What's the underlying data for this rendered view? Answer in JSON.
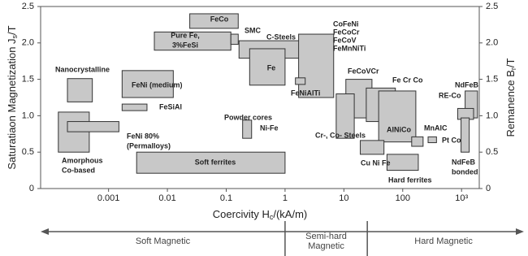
{
  "chart_data": {
    "type": "range-box",
    "x_label_parts": [
      "Coercivity H",
      "c",
      "/(kA/m)"
    ],
    "y_label_parts": [
      "Saturatiaon Magnetization J",
      "s",
      "/T"
    ],
    "y2_label_parts": [
      "Remanence B",
      "r",
      "/T"
    ],
    "xscale": "log",
    "xlim": [
      7e-05,
      2000
    ],
    "xticks": [
      {
        "value": 0.001,
        "label": "0.001"
      },
      {
        "value": 0.01,
        "label": "0.01"
      },
      0.1,
      1,
      10,
      100,
      {
        "value": 1000,
        "label": "10³"
      }
    ],
    "ylim": [
      0,
      2.5
    ],
    "yticks": [
      0,
      0.5,
      {
        "value": 1,
        "label": "1.0"
      },
      1.5,
      {
        "value": 2,
        "label": "2.0"
      },
      2.5
    ],
    "y2lim": [
      0,
      2.5
    ],
    "y2ticks": [
      0,
      0.5,
      {
        "value": 1,
        "label": "1.0"
      },
      1.5,
      {
        "value": 2,
        "label": "2.0"
      },
      2.5
    ],
    "box_color": "#c8c8c8",
    "materials": [
      {
        "label": [
          "FeCo"
        ],
        "x": [
          0.024,
          0.16
        ],
        "y": [
          2.2,
          2.4
        ]
      },
      {
        "label": [
          "Pure Fe,",
          "3%FeSi"
        ],
        "x": [
          0.006,
          0.12
        ],
        "y": [
          1.9,
          2.15
        ]
      },
      {
        "label": [
          "SMC"
        ],
        "x": [
          0.12,
          0.16
        ],
        "y": [
          1.98,
          2.12
        ]
      },
      {
        "label": [
          "C-Steels"
        ],
        "x": [
          0.165,
          4.1
        ],
        "y": [
          1.79,
          2.03
        ]
      },
      {
        "label": [
          "Fe"
        ],
        "x": [
          0.25,
          1
        ],
        "y": [
          1.42,
          1.92
        ]
      },
      {
        "label": [
          "CoFeNi",
          "FeCoCr",
          "FeCoV",
          "FeMnNiTi"
        ],
        "x": [
          1.7,
          6.7
        ],
        "y": [
          1.25,
          2.12
        ]
      },
      {
        "label": [
          "FeNiAlTi"
        ],
        "x": [
          1.5,
          2.2
        ],
        "y": [
          1.43,
          1.52
        ]
      },
      {
        "label": [
          "Nanocrystalline"
        ],
        "x": [
          0.0002,
          0.00053
        ],
        "y": [
          1.19,
          1.51
        ]
      },
      {
        "label": [
          "FeNi (medium)"
        ],
        "x": [
          0.0017,
          0.0126
        ],
        "y": [
          1.25,
          1.62
        ]
      },
      {
        "label": [
          "FeSiAl"
        ],
        "x": [
          0.0017,
          0.0045
        ],
        "y": [
          1.07,
          1.16
        ]
      },
      {
        "label": [
          "Amorphous",
          "Co-based"
        ],
        "x": [
          0.00014,
          0.00047
        ],
        "y": [
          0.5,
          1.05
        ]
      },
      {
        "label": [
          "FeNi 80%",
          "(Permalloys)"
        ],
        "x": [
          0.0002,
          0.0015
        ],
        "y": [
          0.78,
          0.92
        ]
      },
      {
        "label": [
          "Soft ferrites"
        ],
        "x": [
          0.003,
          1
        ],
        "y": [
          0.21,
          0.5
        ]
      },
      {
        "label": [
          "Powder cores",
          "Ni-Fe"
        ],
        "x": [
          0.19,
          0.27
        ],
        "y": [
          0.69,
          0.94
        ]
      },
      {
        "label": [
          "FeCoVCr"
        ],
        "x": [
          10.8,
          30
        ],
        "y": [
          0.97,
          1.5
        ]
      },
      {
        "label": [
          "Cr-, Co- Steels"
        ],
        "x": [
          7.4,
          15
        ],
        "y": [
          0.69,
          1.3
        ]
      },
      {
        "label": [
          "Fe Cr Co"
        ],
        "x": [
          24,
          75
        ],
        "y": [
          0.92,
          1.38
        ]
      },
      {
        "label": [
          "AlNiCo"
        ],
        "x": [
          39,
          167
        ],
        "y": [
          0.64,
          1.34
        ]
      },
      {
        "label": [
          "Cu Ni Fe"
        ],
        "x": [
          19,
          48
        ],
        "y": [
          0.47,
          0.66
        ]
      },
      {
        "label": [
          "Hard ferrites"
        ],
        "x": [
          54,
          184
        ],
        "y": [
          0.25,
          0.47
        ]
      },
      {
        "label": [
          "MnAlC"
        ],
        "x": [
          142,
          222
        ],
        "y": [
          0.58,
          0.71
        ]
      },
      {
        "label": [
          "Pt Co"
        ],
        "x": [
          270,
          375
        ],
        "y": [
          0.63,
          0.71
        ]
      },
      {
        "label": [
          "NdFeB"
        ],
        "x": [
          1150,
          1870
        ],
        "y": [
          0.97,
          1.34
        ]
      },
      {
        "label": [
          "RE-Co"
        ],
        "x": [
          860,
          1600
        ],
        "y": [
          0.95,
          1.1
        ]
      },
      {
        "label": [
          "NdFeB",
          "bonded"
        ],
        "x": [
          980,
          1350
        ],
        "y": [
          0.5,
          0.97
        ]
      }
    ],
    "region_bounds": [
      1,
      25
    ],
    "regions": [
      [
        "Soft Magnetic"
      ],
      [
        "Semi-hard",
        "Magnetic"
      ],
      [
        "Hard Magnetic"
      ]
    ]
  }
}
